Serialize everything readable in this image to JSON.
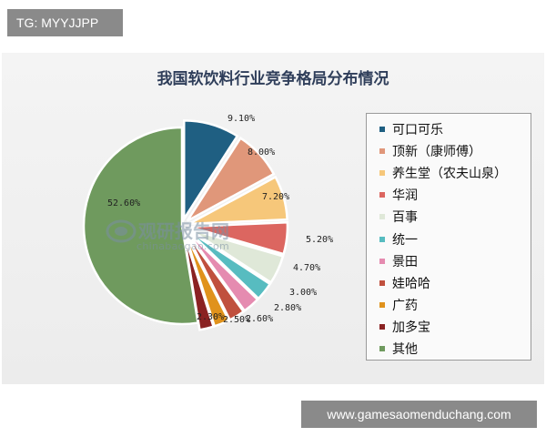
{
  "top_tag": "TG: MYYJJPP",
  "bottom_tag": "www.gamesaomenduchang.com",
  "watermark": {
    "name": "观研报告网",
    "url": "chinabaogao.com"
  },
  "chart_data": {
    "type": "pie",
    "title": "我国软饮料行业竞争格局分布情况",
    "legend_position": "right",
    "slices": [
      {
        "name": "可口可乐",
        "value": 9.1,
        "label": "9.10%",
        "color": "#1f5f82"
      },
      {
        "name": "顶新（康师傅）",
        "value": 8.0,
        "label": "8.00%",
        "color": "#e0977a"
      },
      {
        "name": "养生堂（农夫山泉）",
        "value": 7.2,
        "label": "7.20%",
        "color": "#f6c77a"
      },
      {
        "name": "华润",
        "value": 5.2,
        "label": "5.20%",
        "color": "#dc6660"
      },
      {
        "name": "百事",
        "value": 4.7,
        "label": "4.70%",
        "color": "#dfe8d8"
      },
      {
        "name": "统一",
        "value": 3.0,
        "label": "3.00%",
        "color": "#57bcc0"
      },
      {
        "name": "景田",
        "value": 2.8,
        "label": "2.80%",
        "color": "#e58bb0"
      },
      {
        "name": "娃哈哈",
        "value": 2.6,
        "label": "2.60%",
        "color": "#c0503e"
      },
      {
        "name": "广药",
        "value": 2.5,
        "label": "2.50%",
        "color": "#e0921c"
      },
      {
        "name": "加多宝",
        "value": 2.3,
        "label": "2.30%",
        "color": "#8a2222"
      },
      {
        "name": "其他",
        "value": 52.6,
        "label": "52.60%",
        "color": "#6f9a5e"
      }
    ]
  }
}
